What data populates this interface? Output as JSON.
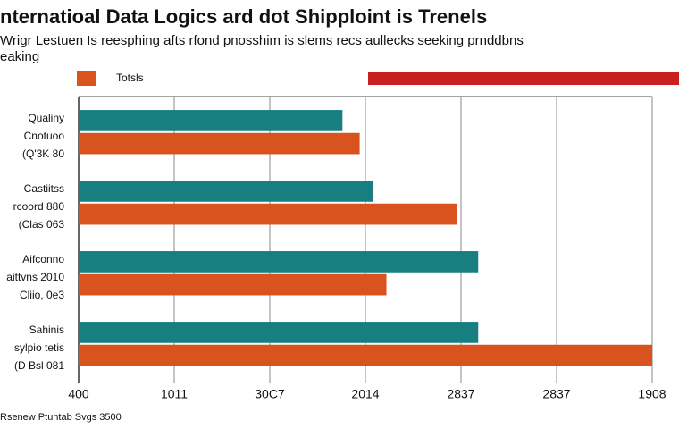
{
  "chart_data": {
    "type": "bar",
    "orientation": "horizontal",
    "title": "nternatioal Data Logics ard dot Shipploint is Trenels",
    "subtitle": [
      "Wrigr Lestuen Is reesphing afts rfond pnosshim is slems recs aullecks seeking prnddbns",
      "eaking"
    ],
    "legend_label": "Totsls",
    "footnote": "Rsenew Ptuntab Svgs 3500",
    "categories": [
      "Qualiny\nCnotuoo\n(Q'3K 80",
      "Castiitss\nrcoord 880\n(Clas 063",
      "Aifconno\naittvns 2010\nCliio, 0e3",
      "Sahinis\nsylpio tetis\n(D Bsl 081"
    ],
    "series": [
      {
        "color": "#177f80",
        "values": [
          1380,
          1540,
          2090,
          2090
        ]
      },
      {
        "name": "Totsls",
        "color": "#d9531e",
        "values": [
          1470,
          1980,
          1610,
          3000
        ]
      }
    ],
    "xlim": [
      0,
      3000
    ],
    "xticks": [
      {
        "value": 0,
        "label": "400"
      },
      {
        "value": 500,
        "label": "1011"
      },
      {
        "value": 1000,
        "label": "30C7"
      },
      {
        "value": 1500,
        "label": "2014"
      },
      {
        "value": 2000,
        "label": "2837"
      },
      {
        "value": 2500,
        "label": "2837"
      },
      {
        "value": 3000,
        "label": "1908"
      }
    ],
    "grid": true
  }
}
